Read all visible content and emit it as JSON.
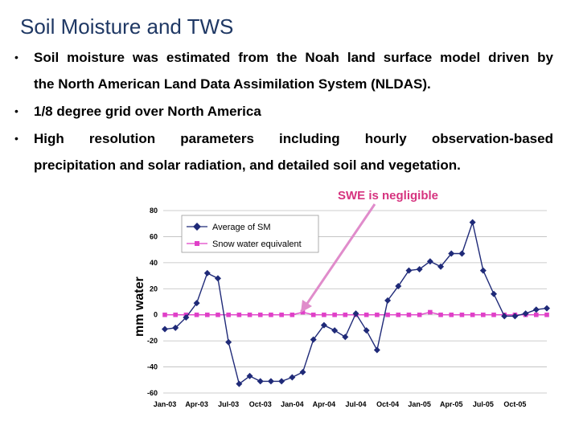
{
  "slide": {
    "title": "Soil Moisture and TWS",
    "bullets": [
      {
        "line1": "Soil moisture was estimated from the Noah land surface model driven by",
        "line2": "the North American Land Data Assimilation System (NLDAS)."
      },
      {
        "line1": "1/8 degree grid over North America"
      },
      {
        "words": [
          "High",
          "resolution",
          "parameters",
          "including",
          "hourly",
          "observation-based"
        ],
        "line2": "precipitation and solar radiation, and detailed soil and vegetation."
      }
    ],
    "bullet_char": "•"
  },
  "colors": {
    "series_sm": "#1f2a78",
    "series_swe": "#e040c8",
    "annotation": "#d6337f",
    "title": "#1f3864"
  },
  "chart_data": {
    "type": "line",
    "title": "",
    "xlabel": "",
    "ylabel": "mm water",
    "ylim": [
      -60,
      80
    ],
    "yticks": [
      80,
      60,
      40,
      20,
      0,
      -20,
      -40,
      -60
    ],
    "x_tick_labels": [
      "Jan-03",
      "Apr-03",
      "Jul-03",
      "Oct-03",
      "Jan-04",
      "Apr-04",
      "Jul-04",
      "Oct-04",
      "Jan-05",
      "Apr-05",
      "Jul-05",
      "Oct-05"
    ],
    "n_points": 37,
    "series": [
      {
        "name": "Average of SM",
        "values": [
          -11,
          -10,
          -2,
          9,
          32,
          28,
          -21,
          -53,
          -47,
          -51,
          -51,
          -51,
          -48,
          -44,
          -19,
          -8,
          -12,
          -17,
          1,
          -12,
          -27,
          11,
          22,
          34,
          35,
          41,
          37,
          47,
          47,
          71,
          34,
          16,
          -1,
          -1,
          1,
          4,
          5
        ]
      },
      {
        "name": "Snow water equivalent",
        "values": [
          0,
          0,
          0,
          0,
          0,
          0,
          0,
          0,
          0,
          0,
          0,
          0,
          0,
          2,
          0,
          0,
          0,
          0,
          0,
          0,
          0,
          0,
          0,
          0,
          0,
          2,
          0,
          0,
          0,
          0,
          0,
          0,
          0,
          0,
          0,
          0,
          0
        ]
      }
    ],
    "legend": "top-left",
    "annotation": {
      "text": "SWE is negligible",
      "points_to": "Snow water equivalent"
    }
  }
}
